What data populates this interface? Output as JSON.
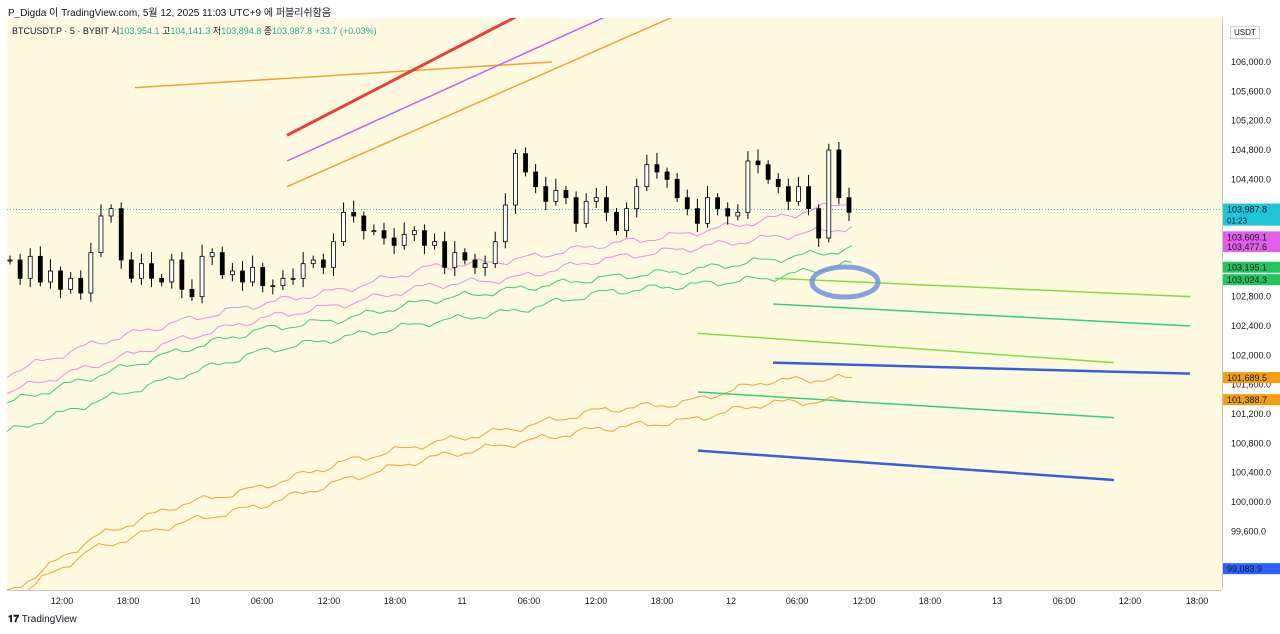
{
  "header": {
    "publish_line": "P_Digda 이 TradingView.com, 5월 12, 2025 11:03 UTC+9 에 퍼블리쉬함음"
  },
  "legend": {
    "symbol": "BTCUSDT.P · 5 · BYBIT",
    "open_label": "시",
    "open": "103,954.1",
    "high_label": "고",
    "high": "104,141.3",
    "low_label": "저",
    "low": "103,894.8",
    "close_label": "종",
    "close": "103,987.8",
    "change": "+33.7 (+0.03%)"
  },
  "currency": "USDT",
  "footer": {
    "brand": "TradingView"
  },
  "colors": {
    "background": "#fffae0",
    "pink": "#f08ae0",
    "green": "#2fd27a",
    "orange": "#f5a030",
    "red": "#e8403a",
    "purple": "#c060f0",
    "blue": "#3560e0",
    "lime": "#7ee040",
    "ellipse": "#7090e0"
  },
  "chart_data": {
    "type": "line",
    "y_axis": {
      "ticks": [
        "106,000.0",
        "105,600.0",
        "105,200.0",
        "104,800.0",
        "104,400.0",
        "102,800.0",
        "102,400.0",
        "102,000.0",
        "101,600.0",
        "101,200.0",
        "100,800.0",
        "100,400.0",
        "100,000.0",
        "99,600.0"
      ],
      "ylim": [
        98800,
        106600
      ]
    },
    "x_axis": {
      "ticks": [
        "12:00",
        "18:00",
        "10",
        "06:00",
        "12:00",
        "18:00",
        "11",
        "06:00",
        "12:00",
        "18:00",
        "12",
        "06:00",
        "12:00",
        "18:00",
        "13",
        "06:00",
        "12:00",
        "18:00"
      ]
    },
    "price_labels": [
      {
        "text": "103,987.8",
        "sub": "01:23",
        "value": 103987.8,
        "color": "#22c5d8"
      },
      {
        "text": "103,609.1",
        "value": 103609.1,
        "color": "#e060e8"
      },
      {
        "text": "103,477.6",
        "value": 103477.6,
        "color": "#e060e8"
      },
      {
        "text": "103,195.1",
        "value": 103195.1,
        "color": "#22c55e"
      },
      {
        "text": "103,024.3",
        "value": 103024.3,
        "color": "#22c55e"
      },
      {
        "text": "101,689.5",
        "value": 101689.5,
        "color": "#f59e0b"
      },
      {
        "text": "101,388.7",
        "value": 101388.7,
        "color": "#f59e0b"
      },
      {
        "text": "99,083.9",
        "value": 99083.9,
        "color": "#2962ff"
      }
    ],
    "current_price": 103987.8,
    "candles": [
      103300,
      103050,
      103350,
      103000,
      103150,
      102900,
      103050,
      102850,
      103400,
      103900,
      104000,
      103300,
      103050,
      103250,
      103050,
      103000,
      103300,
      102900,
      102800,
      103350,
      103400,
      103100,
      103150,
      103000,
      103200,
      102950,
      102950,
      103050,
      103050,
      103250,
      103300,
      103200,
      103550,
      103950,
      103900,
      103700,
      103700,
      103600,
      103500,
      103650,
      103700,
      103500,
      103550,
      103200,
      103400,
      103300,
      103200,
      103250,
      103550,
      104050,
      104750,
      104500,
      104300,
      104100,
      104250,
      104150,
      103800,
      104100,
      104150,
      103950,
      103700,
      104000,
      104300,
      104600,
      104500,
      104400,
      104150,
      104000,
      103800,
      104150,
      104000,
      103900,
      103950,
      104650,
      104600,
      104400,
      104300,
      104100,
      104300,
      104000,
      103600,
      104800,
      104150,
      103950
    ],
    "bands": {
      "pink_upper": [
        101750,
        102150,
        102450,
        102700,
        102900,
        103200,
        103300,
        103500,
        103650,
        103850,
        104100
      ],
      "pink_lower": [
        101500,
        101850,
        102200,
        102500,
        102700,
        102950,
        103050,
        103300,
        103450,
        103600,
        103750
      ],
      "green_upper": [
        101350,
        101700,
        102050,
        102350,
        102500,
        102750,
        102900,
        103050,
        103150,
        103300,
        103450
      ],
      "green_lower": [
        100950,
        101350,
        101700,
        102050,
        102250,
        102450,
        102600,
        102850,
        102950,
        103050,
        103250
      ],
      "orange_upper": [
        98750,
        99500,
        99950,
        100200,
        100550,
        100800,
        101000,
        101250,
        101350,
        101650,
        101689.5
      ],
      "orange_lower": [
        98650,
        99350,
        99700,
        99950,
        100300,
        100600,
        100800,
        101000,
        101100,
        101350,
        101388.7
      ]
    },
    "bands_x_range": [
      "start",
      "12 11:00"
    ],
    "trend_lines": [
      {
        "color": "#c060f0",
        "from": [
          0,
          106700
        ],
        "to": [
          1,
          106950
        ]
      },
      {
        "color": "#f5a030",
        "from": [
          0,
          105650
        ],
        "to": [
          1,
          106000
        ]
      },
      {
        "color": "#e8403a",
        "from": [
          0,
          105000
        ],
        "to": [
          1,
          106850
        ]
      },
      {
        "color": "#c060f0",
        "from": [
          0,
          104650
        ],
        "to": [
          1,
          106700
        ]
      },
      {
        "color": "#f5a030",
        "from": [
          0,
          104300
        ],
        "to": [
          1,
          106700
        ]
      },
      {
        "color": "#7ee040",
        "from": [
          0,
          103050
        ],
        "to": [
          1,
          102800
        ]
      },
      {
        "color": "#2fd27a",
        "from": [
          0,
          102700
        ],
        "to": [
          1,
          102400
        ]
      },
      {
        "color": "#7ee040",
        "from": [
          0,
          102300
        ],
        "to": [
          1,
          101900
        ]
      },
      {
        "color": "#3560e0",
        "from": [
          0,
          101900
        ],
        "to": [
          1,
          101750
        ]
      },
      {
        "color": "#2fd27a",
        "from": [
          0,
          101500
        ],
        "to": [
          1,
          101150
        ]
      },
      {
        "color": "#3560e0",
        "from": [
          0,
          100700
        ],
        "to": [
          1,
          100300
        ]
      }
    ]
  }
}
